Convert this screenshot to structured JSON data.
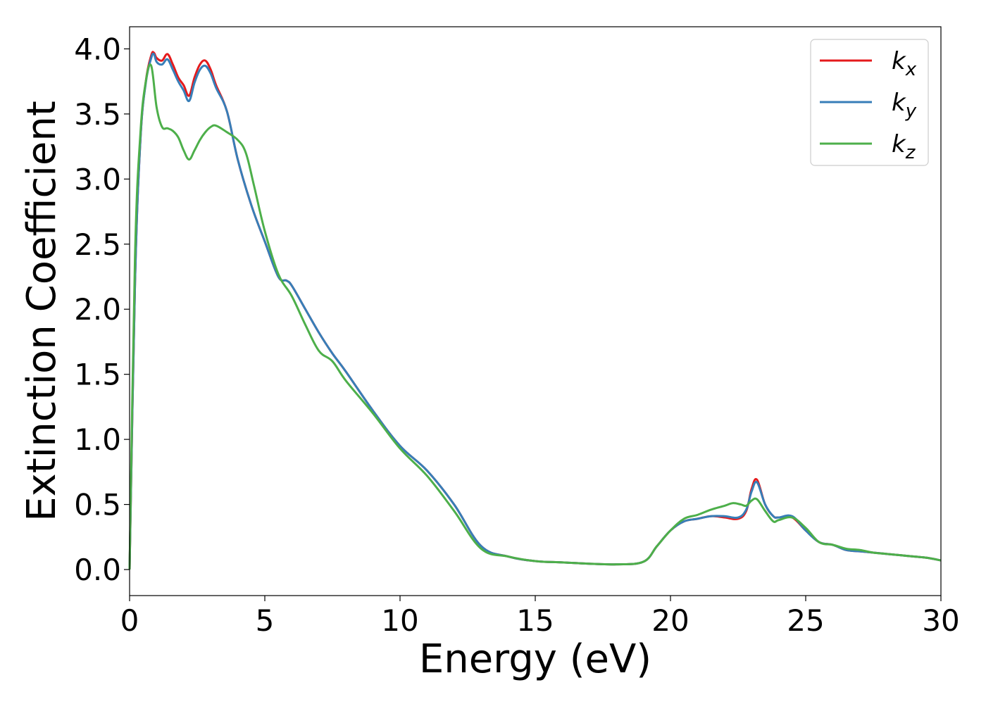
{
  "chart_data": {
    "type": "line",
    "xlabel": "Energy (eV)",
    "ylabel": "Extinction Coefficient",
    "xlim": [
      0,
      30
    ],
    "ylim": [
      -0.2,
      4.17
    ],
    "xticks": [
      0,
      5,
      10,
      15,
      20,
      25,
      30
    ],
    "xtick_labels": [
      "0",
      "5",
      "10",
      "15",
      "20",
      "25",
      "30"
    ],
    "yticks": [
      0.0,
      0.5,
      1.0,
      1.5,
      2.0,
      2.5,
      3.0,
      3.5,
      4.0
    ],
    "ytick_labels": [
      "0.0",
      "0.5",
      "1.0",
      "1.5",
      "2.0",
      "2.5",
      "3.0",
      "3.5",
      "4.0"
    ],
    "grid": false,
    "legend_position": "top-right",
    "series": [
      {
        "name": "kx",
        "legend_base": "k",
        "legend_sub": "x",
        "color": "#e41a1c",
        "x": [
          0,
          0.2,
          0.4,
          0.6,
          0.8,
          0.9,
          1.0,
          1.2,
          1.4,
          1.6,
          1.8,
          2.0,
          2.2,
          2.4,
          2.6,
          2.8,
          3.0,
          3.2,
          3.6,
          4.0,
          4.5,
          5.0,
          5.5,
          5.8,
          6.0,
          6.5,
          7.0,
          7.5,
          8.0,
          9.0,
          10.0,
          11.0,
          12.0,
          13.0,
          14.0,
          15.0,
          16.0,
          17.0,
          18.0,
          19.0,
          19.5,
          20.0,
          20.5,
          21.0,
          21.5,
          22.0,
          22.5,
          22.8,
          23.0,
          23.2,
          23.5,
          23.8,
          24.0,
          24.5,
          25.0,
          25.5,
          26.0,
          26.5,
          27.0,
          27.5,
          28.0,
          28.5,
          29.0,
          29.5,
          30.0
        ],
        "y": [
          0.0,
          2.2,
          3.3,
          3.75,
          3.95,
          3.97,
          3.93,
          3.91,
          3.96,
          3.88,
          3.78,
          3.72,
          3.64,
          3.78,
          3.88,
          3.91,
          3.84,
          3.72,
          3.52,
          3.15,
          2.8,
          2.52,
          2.25,
          2.22,
          2.18,
          2.0,
          1.82,
          1.66,
          1.52,
          1.22,
          0.95,
          0.76,
          0.5,
          0.18,
          0.1,
          0.065,
          0.055,
          0.045,
          0.04,
          0.06,
          0.18,
          0.3,
          0.37,
          0.39,
          0.41,
          0.4,
          0.39,
          0.45,
          0.62,
          0.69,
          0.5,
          0.41,
          0.4,
          0.4,
          0.3,
          0.21,
          0.19,
          0.15,
          0.14,
          0.13,
          0.12,
          0.11,
          0.1,
          0.09,
          0.07
        ]
      },
      {
        "name": "ky",
        "legend_base": "k",
        "legend_sub": "y",
        "color": "#377eb8",
        "x": [
          0,
          0.2,
          0.4,
          0.6,
          0.8,
          0.9,
          1.0,
          1.2,
          1.4,
          1.6,
          1.8,
          2.0,
          2.2,
          2.4,
          2.6,
          2.8,
          3.0,
          3.2,
          3.6,
          4.0,
          4.5,
          5.0,
          5.5,
          5.8,
          6.0,
          6.5,
          7.0,
          7.5,
          8.0,
          9.0,
          10.0,
          11.0,
          12.0,
          13.0,
          14.0,
          15.0,
          16.0,
          17.0,
          18.0,
          19.0,
          19.5,
          20.0,
          20.5,
          21.0,
          21.5,
          22.0,
          22.5,
          22.8,
          23.0,
          23.2,
          23.5,
          23.8,
          24.0,
          24.5,
          25.0,
          25.5,
          26.0,
          26.5,
          27.0,
          27.5,
          28.0,
          28.5,
          29.0,
          29.5,
          30.0
        ],
        "y": [
          0.0,
          2.2,
          3.3,
          3.74,
          3.93,
          3.96,
          3.9,
          3.88,
          3.92,
          3.84,
          3.75,
          3.68,
          3.6,
          3.74,
          3.84,
          3.87,
          3.81,
          3.7,
          3.52,
          3.15,
          2.8,
          2.52,
          2.25,
          2.22,
          2.18,
          2.0,
          1.82,
          1.66,
          1.52,
          1.22,
          0.95,
          0.76,
          0.5,
          0.18,
          0.1,
          0.065,
          0.055,
          0.045,
          0.04,
          0.06,
          0.18,
          0.3,
          0.37,
          0.39,
          0.41,
          0.41,
          0.4,
          0.46,
          0.6,
          0.67,
          0.5,
          0.41,
          0.4,
          0.41,
          0.3,
          0.21,
          0.19,
          0.15,
          0.14,
          0.13,
          0.12,
          0.11,
          0.1,
          0.09,
          0.07
        ]
      },
      {
        "name": "kz",
        "legend_base": "k",
        "legend_sub": "z",
        "color": "#4daf4a",
        "x": [
          0,
          0.2,
          0.4,
          0.6,
          0.8,
          1.0,
          1.2,
          1.4,
          1.6,
          1.8,
          2.0,
          2.2,
          2.4,
          2.6,
          2.8,
          3.0,
          3.2,
          3.6,
          4.0,
          4.3,
          4.6,
          5.0,
          5.5,
          6.0,
          6.5,
          7.0,
          7.5,
          8.0,
          9.0,
          10.0,
          11.0,
          12.0,
          13.0,
          14.0,
          15.0,
          16.0,
          17.0,
          18.0,
          19.0,
          19.5,
          20.0,
          20.5,
          21.0,
          21.5,
          22.0,
          22.3,
          22.6,
          22.8,
          23.0,
          23.2,
          23.5,
          23.8,
          24.0,
          24.5,
          25.0,
          25.5,
          26.0,
          26.5,
          27.0,
          27.5,
          28.0,
          28.5,
          29.0,
          29.5,
          30.0
        ],
        "y": [
          0.0,
          2.4,
          3.35,
          3.75,
          3.87,
          3.55,
          3.4,
          3.39,
          3.37,
          3.32,
          3.22,
          3.15,
          3.22,
          3.3,
          3.36,
          3.4,
          3.41,
          3.36,
          3.3,
          3.2,
          2.95,
          2.6,
          2.27,
          2.1,
          1.88,
          1.68,
          1.6,
          1.45,
          1.2,
          0.93,
          0.72,
          0.45,
          0.16,
          0.1,
          0.065,
          0.055,
          0.045,
          0.04,
          0.06,
          0.18,
          0.3,
          0.39,
          0.42,
          0.46,
          0.49,
          0.51,
          0.5,
          0.49,
          0.53,
          0.54,
          0.45,
          0.37,
          0.38,
          0.4,
          0.32,
          0.21,
          0.19,
          0.16,
          0.15,
          0.13,
          0.12,
          0.11,
          0.1,
          0.09,
          0.07
        ]
      }
    ]
  }
}
